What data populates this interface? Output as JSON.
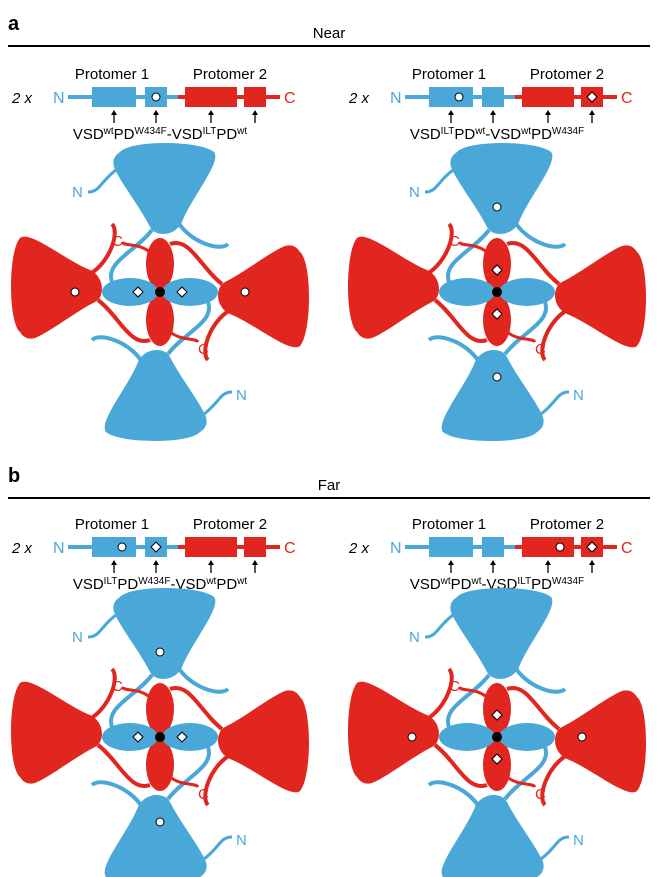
{
  "sections": [
    {
      "letter": "a",
      "title": "Near",
      "constructs": [
        {
          "multiplier": "2 x",
          "n_term": "N",
          "c_term": "C",
          "protomer1": "Protomer 1",
          "protomer2": "Protomer 2",
          "label": [
            [
              "VSD",
              "wt"
            ],
            [
              "PD",
              "W434F"
            ],
            [
              "-VSD",
              "ILT"
            ],
            [
              "PD",
              "wt"
            ]
          ],
          "tetramer_n": [
            "N",
            "N"
          ],
          "tetramer_c": [
            "C",
            "C"
          ]
        },
        {
          "multiplier": "2 x",
          "n_term": "N",
          "c_term": "C",
          "protomer1": "Protomer 1",
          "protomer2": "Protomer 2",
          "label": [
            [
              "VSD",
              "ILT"
            ],
            [
              "PD",
              "wt"
            ],
            [
              "-VSD",
              "wt"
            ],
            [
              "PD",
              "W434F"
            ]
          ],
          "tetramer_n": [
            "N",
            "N"
          ],
          "tetramer_c": [
            "C",
            "C"
          ]
        }
      ]
    },
    {
      "letter": "b",
      "title": "Far",
      "constructs": [
        {
          "multiplier": "2 x",
          "n_term": "N",
          "c_term": "C",
          "protomer1": "Protomer 1",
          "protomer2": "Protomer 2",
          "label": [
            [
              "VSD",
              "ILT"
            ],
            [
              "PD",
              "W434F"
            ],
            [
              "-VSD",
              "wt"
            ],
            [
              "PD",
              "wt"
            ]
          ],
          "tetramer_n": [
            "N",
            "N"
          ],
          "tetramer_c": [
            "C",
            "C"
          ]
        },
        {
          "multiplier": "2 x",
          "n_term": "N",
          "c_term": "C",
          "protomer1": "Protomer 1",
          "protomer2": "Protomer 2",
          "label": [
            [
              "VSD",
              "wt"
            ],
            [
              "PD",
              "wt"
            ],
            [
              "-VSD",
              "ILT"
            ],
            [
              "PD",
              "W434F"
            ]
          ],
          "tetramer_n": [
            "N",
            "N"
          ],
          "tetramer_c": [
            "C",
            "C"
          ]
        }
      ]
    }
  ]
}
